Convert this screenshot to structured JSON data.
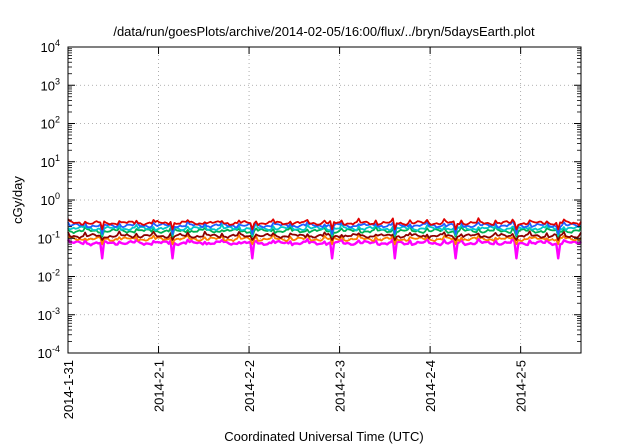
{
  "chart_data": {
    "type": "line",
    "title": "/data/run/goesPlots/archive/2014-02-05/16:00/flux/../bryn/5daysEarth.plot",
    "xlabel": "Coordinated Universal Time (UTC)",
    "ylabel": "cGy/day",
    "y_scale": "log",
    "ylim": [
      0.0001,
      10000
    ],
    "y_ticks": [
      {
        "value": 0.0001,
        "base": "10",
        "exp": "-4"
      },
      {
        "value": 0.001,
        "base": "10",
        "exp": "-3"
      },
      {
        "value": 0.01,
        "base": "10",
        "exp": "-2"
      },
      {
        "value": 0.1,
        "base": "10",
        "exp": "-1"
      },
      {
        "value": 1,
        "base": "10",
        "exp": "0"
      },
      {
        "value": 10,
        "base": "10",
        "exp": "1"
      },
      {
        "value": 100,
        "base": "10",
        "exp": "2"
      },
      {
        "value": 1000,
        "base": "10",
        "exp": "3"
      },
      {
        "value": 10000,
        "base": "10",
        "exp": "4"
      }
    ],
    "xlim": [
      "2014-01-31 00:00",
      "2014-02-05 16:00"
    ],
    "x_ticks": [
      "2014-1-31",
      "2014-2-1",
      "2014-2-2",
      "2014-2-3",
      "2014-2-4",
      "2014-2-5"
    ],
    "grid": true,
    "series": [
      {
        "color": "#ff00ff",
        "base": 0.075,
        "dip_min": 0.03
      },
      {
        "color": "#ff8000",
        "base": 0.095,
        "dip_min": 0.07
      },
      {
        "color": "#8b0000",
        "base": 0.115,
        "dip_min": 0.09
      },
      {
        "color": "#00b050",
        "base": 0.155,
        "dip_min": 0.11
      },
      {
        "color": "#00c8c8",
        "base": 0.18,
        "dip_min": 0.12
      },
      {
        "color": "#2060ff",
        "base": 0.215,
        "dip_min": 0.13
      },
      {
        "color": "#e00000",
        "base": 0.25,
        "dip_min": 0.17
      }
    ]
  }
}
